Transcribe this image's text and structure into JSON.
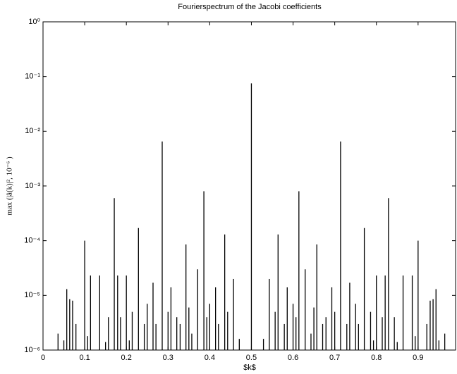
{
  "chart_data": {
    "type": "stem",
    "title": "Fourierspectrum of the Jacobi coefficients",
    "x_label": "$k$",
    "y_label": "max (|â(k)|², 10⁻⁶ )",
    "log_y": true,
    "color": "#000000",
    "xlim": [
      0,
      0.99
    ],
    "ylim": [
      1e-06,
      1
    ],
    "xticks": [
      0,
      0.1,
      0.2,
      0.3,
      0.4,
      0.5,
      0.6,
      0.7,
      0.8,
      0.9
    ],
    "yticks": [
      {
        "value": 1e-06,
        "label": "10⁻⁶"
      },
      {
        "value": 1e-05,
        "label": "10⁻⁵"
      },
      {
        "value": 0.0001,
        "label": "10⁻⁴"
      },
      {
        "value": 0.001,
        "label": "10⁻³"
      },
      {
        "value": 0.01,
        "label": "10⁻²"
      },
      {
        "value": 0.1,
        "label": "10⁻¹"
      },
      {
        "value": 1,
        "label": "10⁰"
      }
    ],
    "x": [
      0.036,
      0.05,
      0.057,
      0.064,
      0.071,
      0.079,
      0.1,
      0.107,
      0.114,
      0.136,
      0.15,
      0.157,
      0.171,
      0.179,
      0.186,
      0.2,
      0.207,
      0.214,
      0.229,
      0.243,
      0.25,
      0.264,
      0.271,
      0.286,
      0.3,
      0.307,
      0.321,
      0.329,
      0.343,
      0.35,
      0.357,
      0.371,
      0.386,
      0.393,
      0.4,
      0.414,
      0.421,
      0.436,
      0.443,
      0.457,
      0.471,
      0.5,
      0.529,
      0.543,
      0.557,
      0.564,
      0.579,
      0.586,
      0.6,
      0.607,
      0.614,
      0.629,
      0.643,
      0.65,
      0.657,
      0.671,
      0.679,
      0.693,
      0.7,
      0.714,
      0.729,
      0.736,
      0.75,
      0.757,
      0.771,
      0.786,
      0.793,
      0.8,
      0.814,
      0.821,
      0.829,
      0.843,
      0.85,
      0.864,
      0.886,
      0.893,
      0.9,
      0.921,
      0.929,
      0.936,
      0.943,
      0.95,
      0.964
    ],
    "values": [
      2e-06,
      1.5e-06,
      1.3e-05,
      8.5e-06,
      8e-06,
      3e-06,
      0.0001,
      1.8e-06,
      2.3e-05,
      2.3e-05,
      1.4e-06,
      4e-06,
      0.0006,
      2.3e-05,
      4e-06,
      2.3e-05,
      1.5e-06,
      5e-06,
      0.00017,
      3e-06,
      7e-06,
      1.7e-05,
      3e-06,
      0.0065,
      5e-06,
      1.4e-05,
      4e-06,
      3e-06,
      8.5e-05,
      6e-06,
      2e-06,
      3e-05,
      0.0008,
      4e-06,
      7e-06,
      1.4e-05,
      3e-06,
      0.00013,
      5e-06,
      2e-05,
      1.6e-06,
      0.075,
      1.6e-06,
      2e-05,
      5e-06,
      0.00013,
      3e-06,
      1.4e-05,
      7e-06,
      4e-06,
      0.0008,
      3e-05,
      2e-06,
      6e-06,
      8.5e-05,
      3e-06,
      4e-06,
      1.4e-05,
      5e-06,
      0.0065,
      3e-06,
      1.7e-05,
      7e-06,
      3e-06,
      0.00017,
      5e-06,
      1.5e-06,
      2.3e-05,
      4e-06,
      2.3e-05,
      0.0006,
      4e-06,
      1.4e-06,
      2.3e-05,
      2.3e-05,
      1.8e-06,
      0.0001,
      3e-06,
      8e-06,
      8.5e-06,
      1.3e-05,
      1.5e-06,
      2e-06
    ]
  }
}
